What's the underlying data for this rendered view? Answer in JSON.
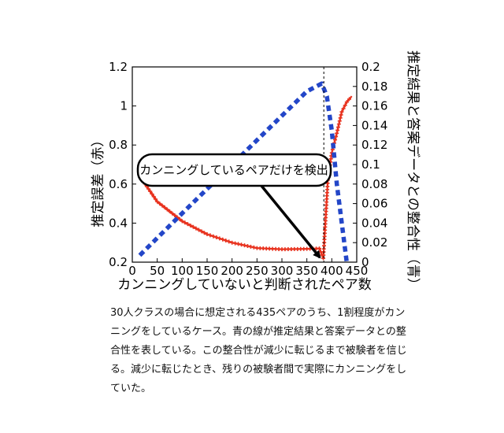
{
  "chart_data": {
    "type": "line",
    "xlabel": "カンニングしていないと判断されたペア数",
    "ylabel_left": "推定誤差（赤）",
    "ylabel_right": "推定結果と答案データとの整合性（青）",
    "xlim": [
      0,
      450
    ],
    "ylim_left": [
      0.2,
      1.2
    ],
    "ylim_right": [
      0,
      0.2
    ],
    "x_ticks": [
      "0",
      "50",
      "100",
      "150",
      "200",
      "250",
      "300",
      "350",
      "400",
      "450"
    ],
    "y_ticks_left": [
      "0.2",
      "0.4",
      "0.6",
      "0.8",
      "1",
      "1.2"
    ],
    "y_ticks_right": [
      "0",
      "0.02",
      "0.04",
      "0.06",
      "0.08",
      "0.1",
      "0.12",
      "0.14",
      "0.16",
      "0.18",
      "0.2"
    ],
    "vline_x": 384,
    "annotation": "カンニングしているペアだけを検出",
    "series": [
      {
        "color": "#e8321e",
        "axis": "left",
        "points": [
          [
            15,
            0.64
          ],
          [
            50,
            0.51
          ],
          [
            100,
            0.41
          ],
          [
            150,
            0.343
          ],
          [
            200,
            0.3
          ],
          [
            250,
            0.272
          ],
          [
            300,
            0.266
          ],
          [
            350,
            0.268
          ],
          [
            375,
            0.27
          ],
          [
            383,
            0.22
          ],
          [
            392,
            0.62
          ],
          [
            400,
            0.76
          ],
          [
            410,
            0.86
          ],
          [
            420,
            0.97
          ],
          [
            430,
            1.02
          ],
          [
            440,
            1.05
          ]
        ]
      },
      {
        "color": "#2346c8",
        "axis": "right",
        "points": [
          [
            15,
            0.007
          ],
          [
            100,
            0.05
          ],
          [
            200,
            0.1
          ],
          [
            300,
            0.15
          ],
          [
            350,
            0.175
          ],
          [
            380,
            0.183
          ],
          [
            390,
            0.17
          ],
          [
            400,
            0.135
          ],
          [
            410,
            0.08
          ],
          [
            420,
            0.04
          ],
          [
            430,
            0.0
          ]
        ]
      }
    ]
  },
  "caption": "30人クラスの場合に想定される435ペアのうち、1割程度がカンニングをしているケース。青の線が推定結果と答案データとの整合性を表している。この整合性が減少に転じるまで被験者を信じる。減少に転じたとき、残りの被験者間で実際にカンニングをしていた。"
}
